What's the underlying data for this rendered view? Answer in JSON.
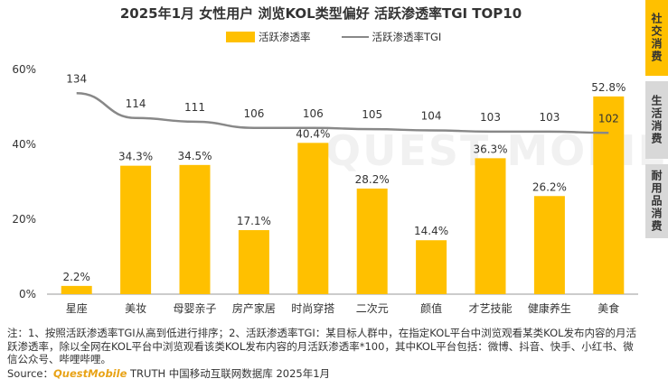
{
  "title": "2025年1月 女性用户 浏览KOL类型偏好 活跃渗透率TGI TOP10",
  "legend": {
    "bar_label": "活跃渗透率",
    "line_label": "活跃渗透率TGI"
  },
  "colors": {
    "bar": "#FFC000",
    "line": "#888888",
    "tab_active": "#FFC000",
    "tab_inactive": "#d8d8d8"
  },
  "side_tabs": [
    {
      "label": "社交消费",
      "active": true
    },
    {
      "label": "生活消费",
      "active": false
    },
    {
      "label": "耐用品消费",
      "active": false
    }
  ],
  "chart_data": {
    "type": "bar",
    "categories": [
      "星座",
      "美妆",
      "母婴亲子",
      "房产家居",
      "时尚穿搭",
      "二次元",
      "颜值",
      "才艺技能",
      "健康养生",
      "美食"
    ],
    "series": [
      {
        "name": "活跃渗透率",
        "type": "bar",
        "values": [
          2.2,
          34.3,
          34.5,
          17.1,
          40.4,
          28.2,
          14.4,
          36.3,
          26.2,
          52.8
        ],
        "labels": [
          "2.2%",
          "34.3%",
          "34.5%",
          "17.1%",
          "40.4%",
          "28.2%",
          "14.4%",
          "36.3%",
          "26.2%",
          "52.8%"
        ]
      },
      {
        "name": "活跃渗透率TGI",
        "type": "line",
        "values": [
          134,
          114,
          111,
          106,
          106,
          105,
          104,
          103,
          103,
          102
        ],
        "labels": [
          "134",
          "114",
          "111",
          "106",
          "106",
          "105",
          "104",
          "103",
          "103",
          "102"
        ]
      }
    ],
    "ylim": [
      0,
      60
    ],
    "yticks": [
      "0%",
      "20%",
      "40%",
      "60%"
    ],
    "grid": false,
    "legend_position": "top-center"
  },
  "footnote": "注：1、按照活跃渗透率TGI从高到低进行排序；2、活跃渗透率TGI：某目标人群中，在指定KOL平台中浏览观看某类KOL发布内容的月活跃渗透率，除以全网在KOL平台中浏览观看该类KOL发布内容的月活跃渗透率*100，其中KOL平台包括：微博、抖音、快手、小红书、微信公众号、哔哩哔哩。",
  "source": {
    "prefix": "Source：",
    "brand": "QuestMobile",
    "text": "TRUTH 中国移动互联网数据库 2025年1月"
  },
  "watermark": "QUEST MOBILE"
}
